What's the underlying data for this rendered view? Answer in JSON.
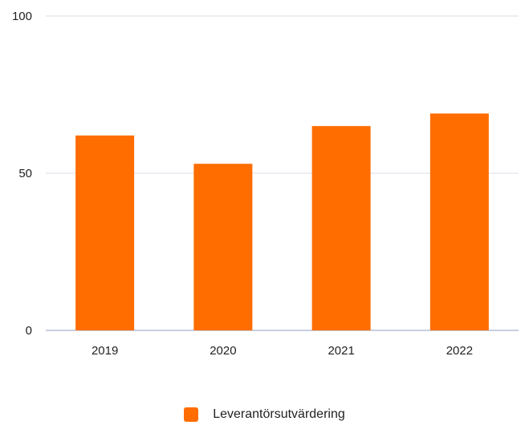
{
  "chart_data": {
    "type": "bar",
    "categories": [
      "2019",
      "2020",
      "2021",
      "2022"
    ],
    "series": [
      {
        "name": "Leverantörsutvärdering",
        "values": [
          62,
          53,
          65,
          69
        ],
        "color": "#ff6d00"
      }
    ],
    "ylim": [
      0,
      100
    ],
    "yticks": [
      0,
      50,
      100
    ],
    "grid": true,
    "legend": "bottom",
    "colors": {
      "bar": "#ff6d00",
      "grid": "#e6e8ef",
      "baseline": "#c9cfe0"
    }
  }
}
